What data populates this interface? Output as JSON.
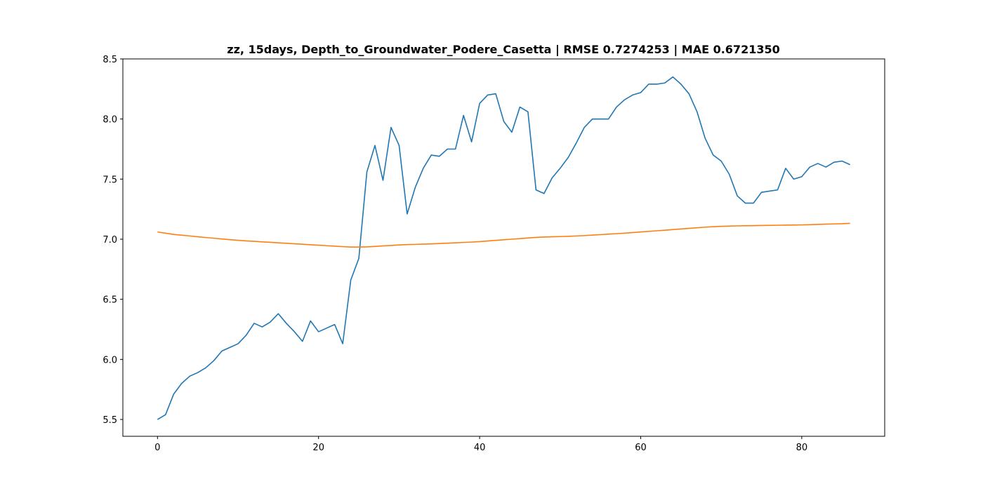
{
  "chart_data": {
    "type": "line",
    "title": "zz, 15days, Depth_to_Groundwater_Podere_Casetta | RMSE 0.7274253 | MAE 0.6721350",
    "xlabel": "",
    "ylabel": "",
    "xlim": [
      -4.3,
      90.3
    ],
    "ylim": [
      5.36,
      8.5
    ],
    "x_ticks": [
      0,
      20,
      40,
      60,
      80
    ],
    "y_ticks": [
      5.5,
      6.0,
      6.5,
      7.0,
      7.5,
      8.0,
      8.5
    ],
    "y_tick_labels": [
      "5.5",
      "6.0",
      "6.5",
      "7.0",
      "7.5",
      "8.0",
      "8.5"
    ],
    "grid": false,
    "colors": {
      "series_1": "#1f77b4",
      "series_2": "#ff7f0e"
    },
    "series": [
      {
        "values": [
          5.5,
          5.54,
          5.71,
          5.8,
          5.86,
          5.89,
          5.93,
          5.99,
          6.07,
          6.1,
          6.13,
          6.2,
          6.3,
          6.27,
          6.31,
          6.38,
          6.3,
          6.23,
          6.15,
          6.32,
          6.23,
          6.26,
          6.29,
          6.13,
          6.66,
          6.84,
          7.56,
          7.78,
          7.49,
          7.93,
          7.78,
          7.21,
          7.43,
          7.59,
          7.7,
          7.69,
          7.75,
          7.75,
          8.03,
          7.81,
          8.13,
          8.2,
          8.21,
          7.98,
          7.89,
          8.1,
          8.06,
          7.41,
          7.38,
          7.51,
          7.59,
          7.68,
          7.8,
          7.93,
          8.0,
          8.0,
          8.0,
          8.1,
          8.16,
          8.2,
          8.22,
          8.29,
          8.29,
          8.3,
          8.35,
          8.29,
          8.21,
          8.06,
          7.84,
          7.7,
          7.65,
          7.54,
          7.36,
          7.3,
          7.3,
          7.39,
          7.4,
          7.41,
          7.59,
          7.5,
          7.52,
          7.6,
          7.63,
          7.6,
          7.64,
          7.65,
          7.62
        ]
      },
      {
        "values": [
          7.06,
          7.05,
          7.04,
          7.033,
          7.027,
          7.02,
          7.014,
          7.008,
          7.002,
          6.996,
          6.991,
          6.986,
          6.982,
          6.978,
          6.974,
          6.97,
          6.966,
          6.962,
          6.958,
          6.954,
          6.95,
          6.946,
          6.942,
          6.938,
          6.935,
          6.935,
          6.936,
          6.94,
          6.944,
          6.948,
          6.952,
          6.955,
          6.957,
          6.959,
          6.961,
          6.964,
          6.967,
          6.97,
          6.973,
          6.976,
          6.98,
          6.985,
          6.99,
          6.995,
          7.0,
          7.005,
          7.01,
          7.015,
          7.018,
          7.02,
          7.022,
          7.024,
          7.027,
          7.03,
          7.034,
          7.038,
          7.042,
          7.046,
          7.05,
          7.055,
          7.06,
          7.065,
          7.07,
          7.075,
          7.08,
          7.085,
          7.09,
          7.095,
          7.1,
          7.104,
          7.107,
          7.109,
          7.111,
          7.112,
          7.113,
          7.114,
          7.115,
          7.116,
          7.117,
          7.118,
          7.119,
          7.121,
          7.123,
          7.125,
          7.127,
          7.129,
          7.132
        ]
      }
    ]
  }
}
